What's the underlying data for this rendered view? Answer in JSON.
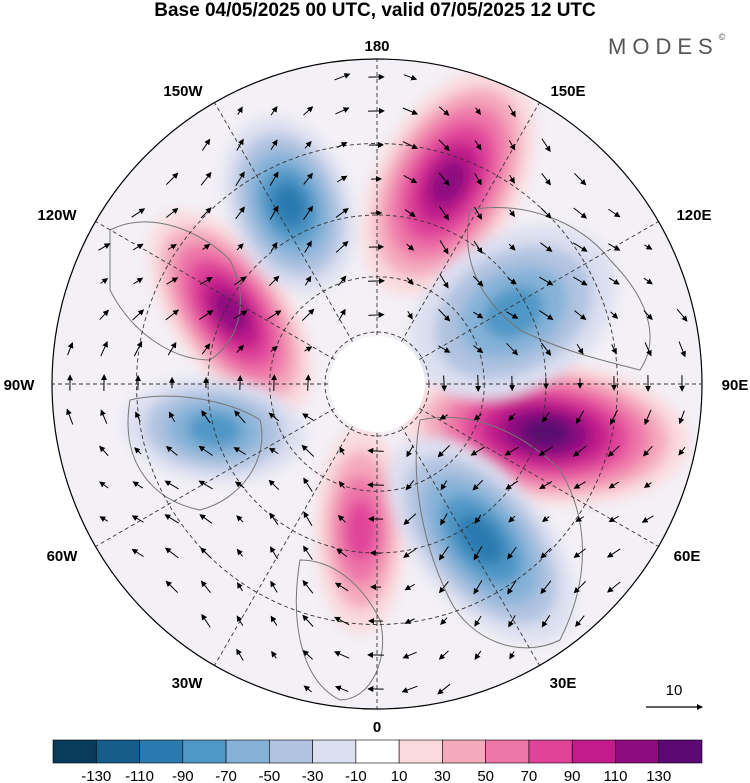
{
  "title": "Base 04/05/2025 00 UTC, valid 07/05/2025 12 UTC",
  "brand": {
    "name": "MODES",
    "mark": "©"
  },
  "map": {
    "projection": "north-polar-stereographic",
    "longitude_labels": [
      "180",
      "150E",
      "120E",
      "90E",
      "60E",
      "30E",
      "0",
      "30W",
      "60W",
      "90W",
      "120W",
      "150W"
    ],
    "colors": {
      "land_outline": "#777777",
      "graticule": "#333333",
      "vector": "#000000"
    },
    "anomalies": [
      {
        "type": "positive",
        "intensity": 110,
        "region": "near 150E"
      },
      {
        "type": "positive",
        "intensity": 130,
        "region": "near 90E-60E"
      },
      {
        "type": "positive",
        "intensity": 110,
        "region": "near 120W-90W"
      },
      {
        "type": "positive",
        "intensity": 70,
        "region": "near 0-30W"
      },
      {
        "type": "negative",
        "intensity": -90,
        "region": "near 150W-180"
      },
      {
        "type": "negative",
        "intensity": -70,
        "region": "near 120E-90E"
      },
      {
        "type": "negative",
        "intensity": -90,
        "region": "near 30E-60E"
      },
      {
        "type": "negative",
        "intensity": -70,
        "region": "near 90W-60W"
      }
    ]
  },
  "vector_scale": {
    "label": "10"
  },
  "colorbar": {
    "tick_labels": [
      "-130",
      "-110",
      "-90",
      "-70",
      "-50",
      "-30",
      "-10",
      "10",
      "30",
      "50",
      "70",
      "90",
      "110",
      "130"
    ],
    "colors": [
      "#0a3a5c",
      "#165d8a",
      "#2a7ab0",
      "#4f97c6",
      "#86b2d8",
      "#b0c3e0",
      "#dcdff0",
      "#ffffff",
      "#fadadd",
      "#f4a9bd",
      "#ee76a8",
      "#e0449a",
      "#c11c8a",
      "#8e0c80",
      "#5a0a72"
    ]
  }
}
